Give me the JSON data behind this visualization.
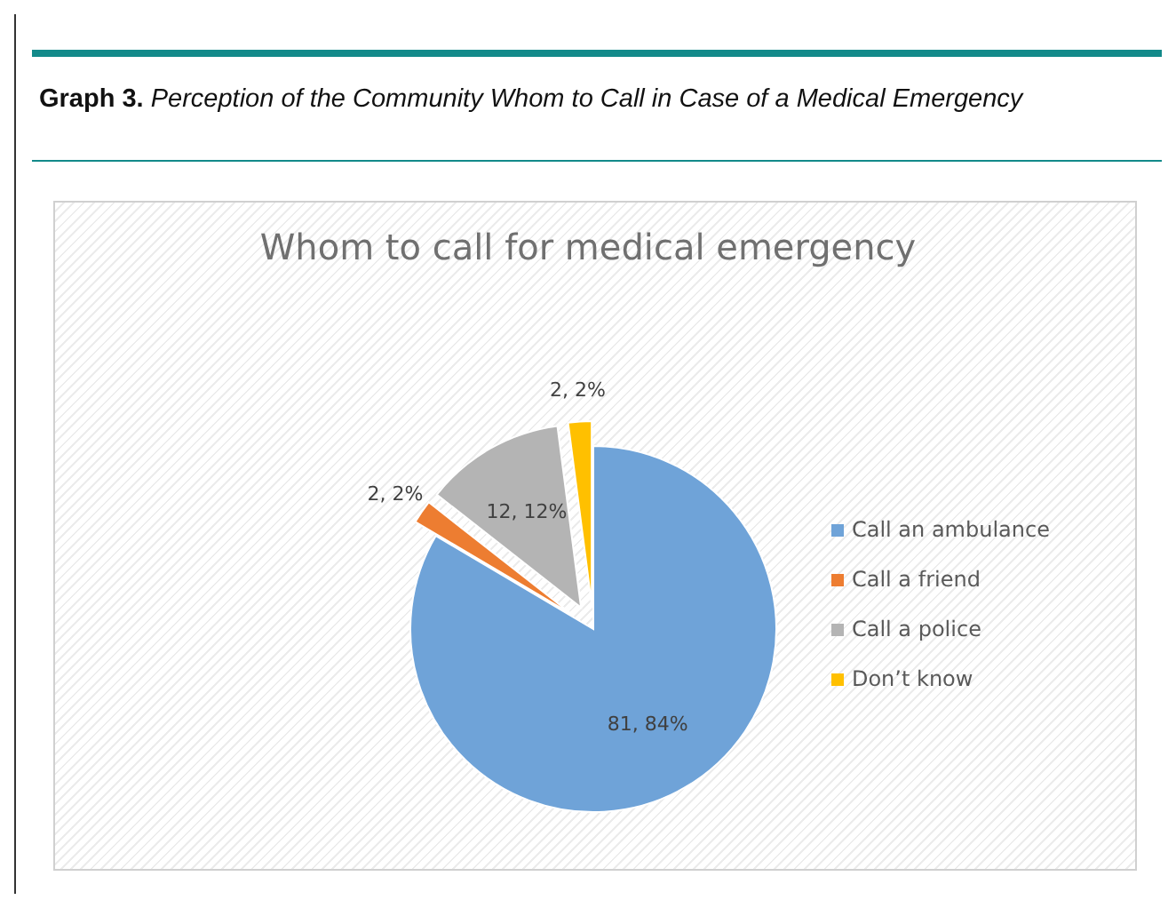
{
  "chart_data": {
    "type": "pie",
    "title": "Graph 3. Perception of the Community Whom to Call in Case of a Medical Emergency",
    "subtitle": "Whom to call for medical emergency",
    "categories": [
      "Call an ambulance",
      "Call a friend",
      "Call a police",
      "Don’t know"
    ],
    "values": [
      81,
      2,
      12,
      2
    ],
    "value_labels": [
      "81, 84%",
      "2, 2%",
      "12, 12%",
      "2, 2%"
    ],
    "colors": [
      "#6fa3d8",
      "#ed7d31",
      "#b4b4b4",
      "#ffc000"
    ],
    "legend": "right"
  }
}
